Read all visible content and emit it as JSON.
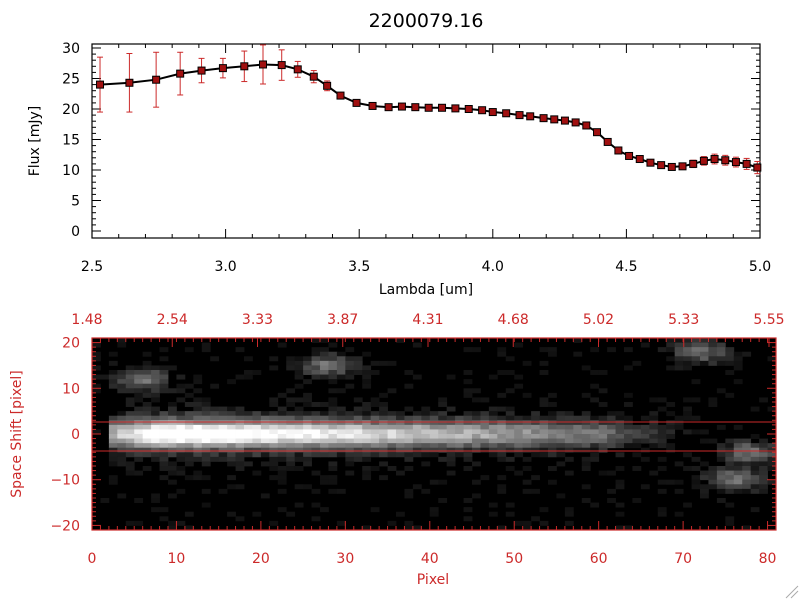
{
  "colors": {
    "axis_black": "#000000",
    "axis_red": "#cc2a2a",
    "marker_fill": "#a01010",
    "errorbar": "#cc2a2a",
    "line": "#000000",
    "spectrum_bg": "#000000"
  },
  "chart_data": [
    {
      "type": "line",
      "title": "2200079.16",
      "xlabel": "Lambda [um]",
      "ylabel": "Flux [mJy]",
      "xlim": [
        2.5,
        5.0
      ],
      "ylim": [
        0,
        30
      ],
      "xticks": [
        "2.5",
        "3.0",
        "3.5",
        "4.0",
        "4.5",
        "5.0"
      ],
      "yticks": [
        "0",
        "5",
        "10",
        "15",
        "20",
        "25",
        "30"
      ],
      "grid": false,
      "legend": "none",
      "series": [
        {
          "x": [
            2.53,
            2.64,
            2.74,
            2.83,
            2.91,
            2.99,
            3.07,
            3.14,
            3.21,
            3.27,
            3.33,
            3.38,
            3.43,
            3.49,
            3.55,
            3.61,
            3.66,
            3.71,
            3.76,
            3.81,
            3.86,
            3.91,
            3.96,
            4.0,
            4.05,
            4.1,
            4.14,
            4.19,
            4.23,
            4.27,
            4.31,
            4.35,
            4.39,
            4.43,
            4.47,
            4.51,
            4.55,
            4.59,
            4.63,
            4.67,
            4.71,
            4.75,
            4.79,
            4.83,
            4.87,
            4.91,
            4.95,
            4.99
          ],
          "y": [
            24.0,
            24.3,
            24.8,
            25.8,
            26.3,
            26.7,
            27.0,
            27.3,
            27.2,
            26.5,
            25.3,
            23.8,
            22.2,
            21.0,
            20.5,
            20.3,
            20.4,
            20.3,
            20.2,
            20.2,
            20.1,
            20.0,
            19.8,
            19.5,
            19.3,
            19.0,
            18.8,
            18.5,
            18.3,
            18.1,
            17.8,
            17.3,
            16.2,
            14.6,
            13.2,
            12.3,
            11.8,
            11.2,
            10.8,
            10.5,
            10.6,
            11.0,
            11.5,
            11.8,
            11.6,
            11.3,
            11.0,
            10.4
          ],
          "yerr": [
            4.5,
            4.8,
            4.5,
            3.5,
            2.0,
            1.6,
            2.5,
            3.2,
            2.5,
            1.3,
            1.0,
            0.8,
            0.5,
            0.4,
            0.3,
            0.3,
            0.3,
            0.3,
            0.3,
            0.3,
            0.3,
            0.3,
            0.3,
            0.3,
            0.3,
            0.3,
            0.3,
            0.3,
            0.3,
            0.3,
            0.3,
            0.3,
            0.4,
            0.4,
            0.4,
            0.4,
            0.4,
            0.4,
            0.4,
            0.5,
            0.5,
            0.6,
            0.7,
            0.8,
            0.8,
            0.8,
            0.9,
            1.0
          ]
        }
      ]
    },
    {
      "type": "heatmap",
      "xlabel": "Pixel",
      "ylabel": "Space Shift [pixel]",
      "xlim": [
        0,
        81
      ],
      "ylim": [
        -21,
        21
      ],
      "xticks": [
        "0",
        "10",
        "20",
        "30",
        "40",
        "50",
        "60",
        "70",
        "80"
      ],
      "yticks": [
        "−20",
        "−10",
        "0",
        "10",
        "20"
      ],
      "top_axis_ticks": [
        "1.48",
        "2.54",
        "3.33",
        "3.87",
        "4.31",
        "4.68",
        "5.02",
        "5.33",
        "5.55"
      ],
      "extraction_window_rows": [
        -3,
        3
      ],
      "colormap": "grayscale",
      "features": [
        {
          "name": "spectrum_trace",
          "y_center": 0,
          "x_range": [
            5,
            70
          ],
          "peak_x": 9
        },
        {
          "name": "blob",
          "x": 28,
          "y": 15
        },
        {
          "name": "blob",
          "x": 72,
          "y": 18
        },
        {
          "name": "blob",
          "x": 78,
          "y": -4
        },
        {
          "name": "blob",
          "x": 76,
          "y": -10
        },
        {
          "name": "blob",
          "x": 6,
          "y": 12
        }
      ]
    }
  ]
}
